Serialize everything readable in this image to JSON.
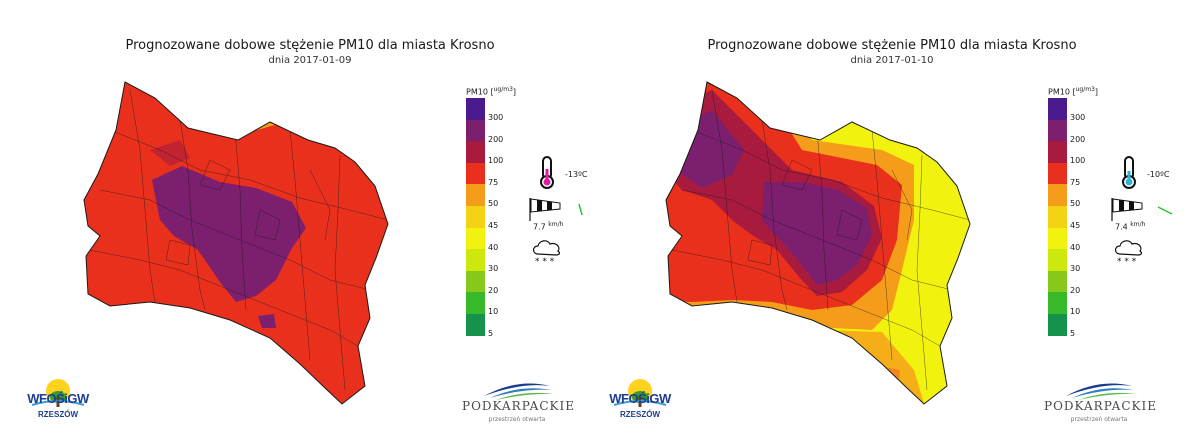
{
  "colors": {
    "c300": "#4a1b8e",
    "c200": "#7b1f6e",
    "c100": "#a91b3e",
    "c75": "#e8301c",
    "c50": "#f59c1a",
    "c45": "#f3d313",
    "c40": "#f2f20f",
    "c30": "#cde80e",
    "c20": "#86c91a",
    "c10": "#38b92a",
    "c5": "#15924b"
  },
  "legend": {
    "title": "PM10",
    "unit_top": "ug/m",
    "unit_exp": "3",
    "levels": [
      {
        "label": "300",
        "color": "#4a1b8e"
      },
      {
        "label": "200",
        "color": "#7b1f6e"
      },
      {
        "label": "100",
        "color": "#a91b3e"
      },
      {
        "label": "75",
        "color": "#e8301c"
      },
      {
        "label": "50",
        "color": "#f59c1a"
      },
      {
        "label": "45",
        "color": "#f3d313"
      },
      {
        "label": "40",
        "color": "#f2f20f"
      },
      {
        "label": "30",
        "color": "#cde80e"
      },
      {
        "label": "20",
        "color": "#86c91a"
      },
      {
        "label": "10",
        "color": "#38b92a"
      },
      {
        "label": "5",
        "color": "#15924b"
      }
    ]
  },
  "panels": [
    {
      "title": "Prognozowane dobowe stężenie PM10 dla miasta Krosno",
      "subtitle": "dnia 2017-01-09",
      "temperature": "-13ºC",
      "thermometer_color": "#e21a9f",
      "wind_speed": "7.7",
      "wind_unit": "km/h"
    },
    {
      "title": "Prognozowane dobowe stężenie PM10 dla miasta Krosno",
      "subtitle": "dnia 2017-01-10",
      "temperature": "-10ºC",
      "thermometer_color": "#2cb4d4",
      "wind_speed": "7.4",
      "wind_unit": "km/h"
    }
  ],
  "logos": {
    "wfos_text": "WFOŚiGW",
    "wfos_sub": "RZESZÓW",
    "podkarpackie_name": "PODKARPACKIE",
    "podkarpackie_tag": "przestrzeń otwarta"
  },
  "icons": {
    "thermometer": "thermometer-icon",
    "windsock": "windsock-icon",
    "wind_direction": "wind-arrow-icon",
    "weather": "snow-cloud-icon"
  }
}
